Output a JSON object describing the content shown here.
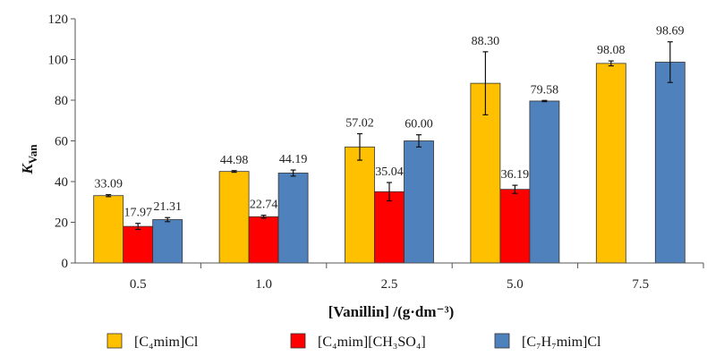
{
  "chart_data": {
    "type": "bar",
    "title": "",
    "xlabel": "[Vanillin] /(g·dm⁻³)",
    "ylabel_main": "K",
    "ylabel_sub": "Van",
    "ylim": [
      0,
      120
    ],
    "yticks": [
      0,
      20,
      40,
      60,
      80,
      100,
      120
    ],
    "grid": false,
    "legend_position": "bottom",
    "categories": [
      "0.5",
      "1.0",
      "2.5",
      "5.0",
      "7.5"
    ],
    "series": [
      {
        "name": "[C₄mim]Cl",
        "color": "#FFC000",
        "values": [
          33.09,
          44.98,
          57.02,
          88.3,
          98.08
        ],
        "errors": [
          0.5,
          0.4,
          6.5,
          15.5,
          1.2
        ],
        "labels": [
          "33.09",
          "44.98",
          "57.02",
          "88.30",
          "98.08"
        ]
      },
      {
        "name": "[C₄mim][CH₃SO₄]",
        "color": "#FF0000",
        "values": [
          17.97,
          22.74,
          35.04,
          36.19,
          null
        ],
        "errors": [
          1.5,
          0.7,
          4.5,
          2.0,
          null
        ],
        "labels": [
          "17.97",
          "22.74",
          "35.04",
          "36.19",
          ""
        ]
      },
      {
        "name": "[C₇H₇mim]Cl",
        "color": "#4F81BD",
        "values": [
          21.31,
          44.19,
          60.0,
          79.58,
          98.69
        ],
        "errors": [
          1.0,
          1.5,
          3.0,
          0.3,
          10.0
        ],
        "labels": [
          "21.31",
          "44.19",
          "60.00",
          "79.58",
          "98.69"
        ]
      }
    ]
  }
}
